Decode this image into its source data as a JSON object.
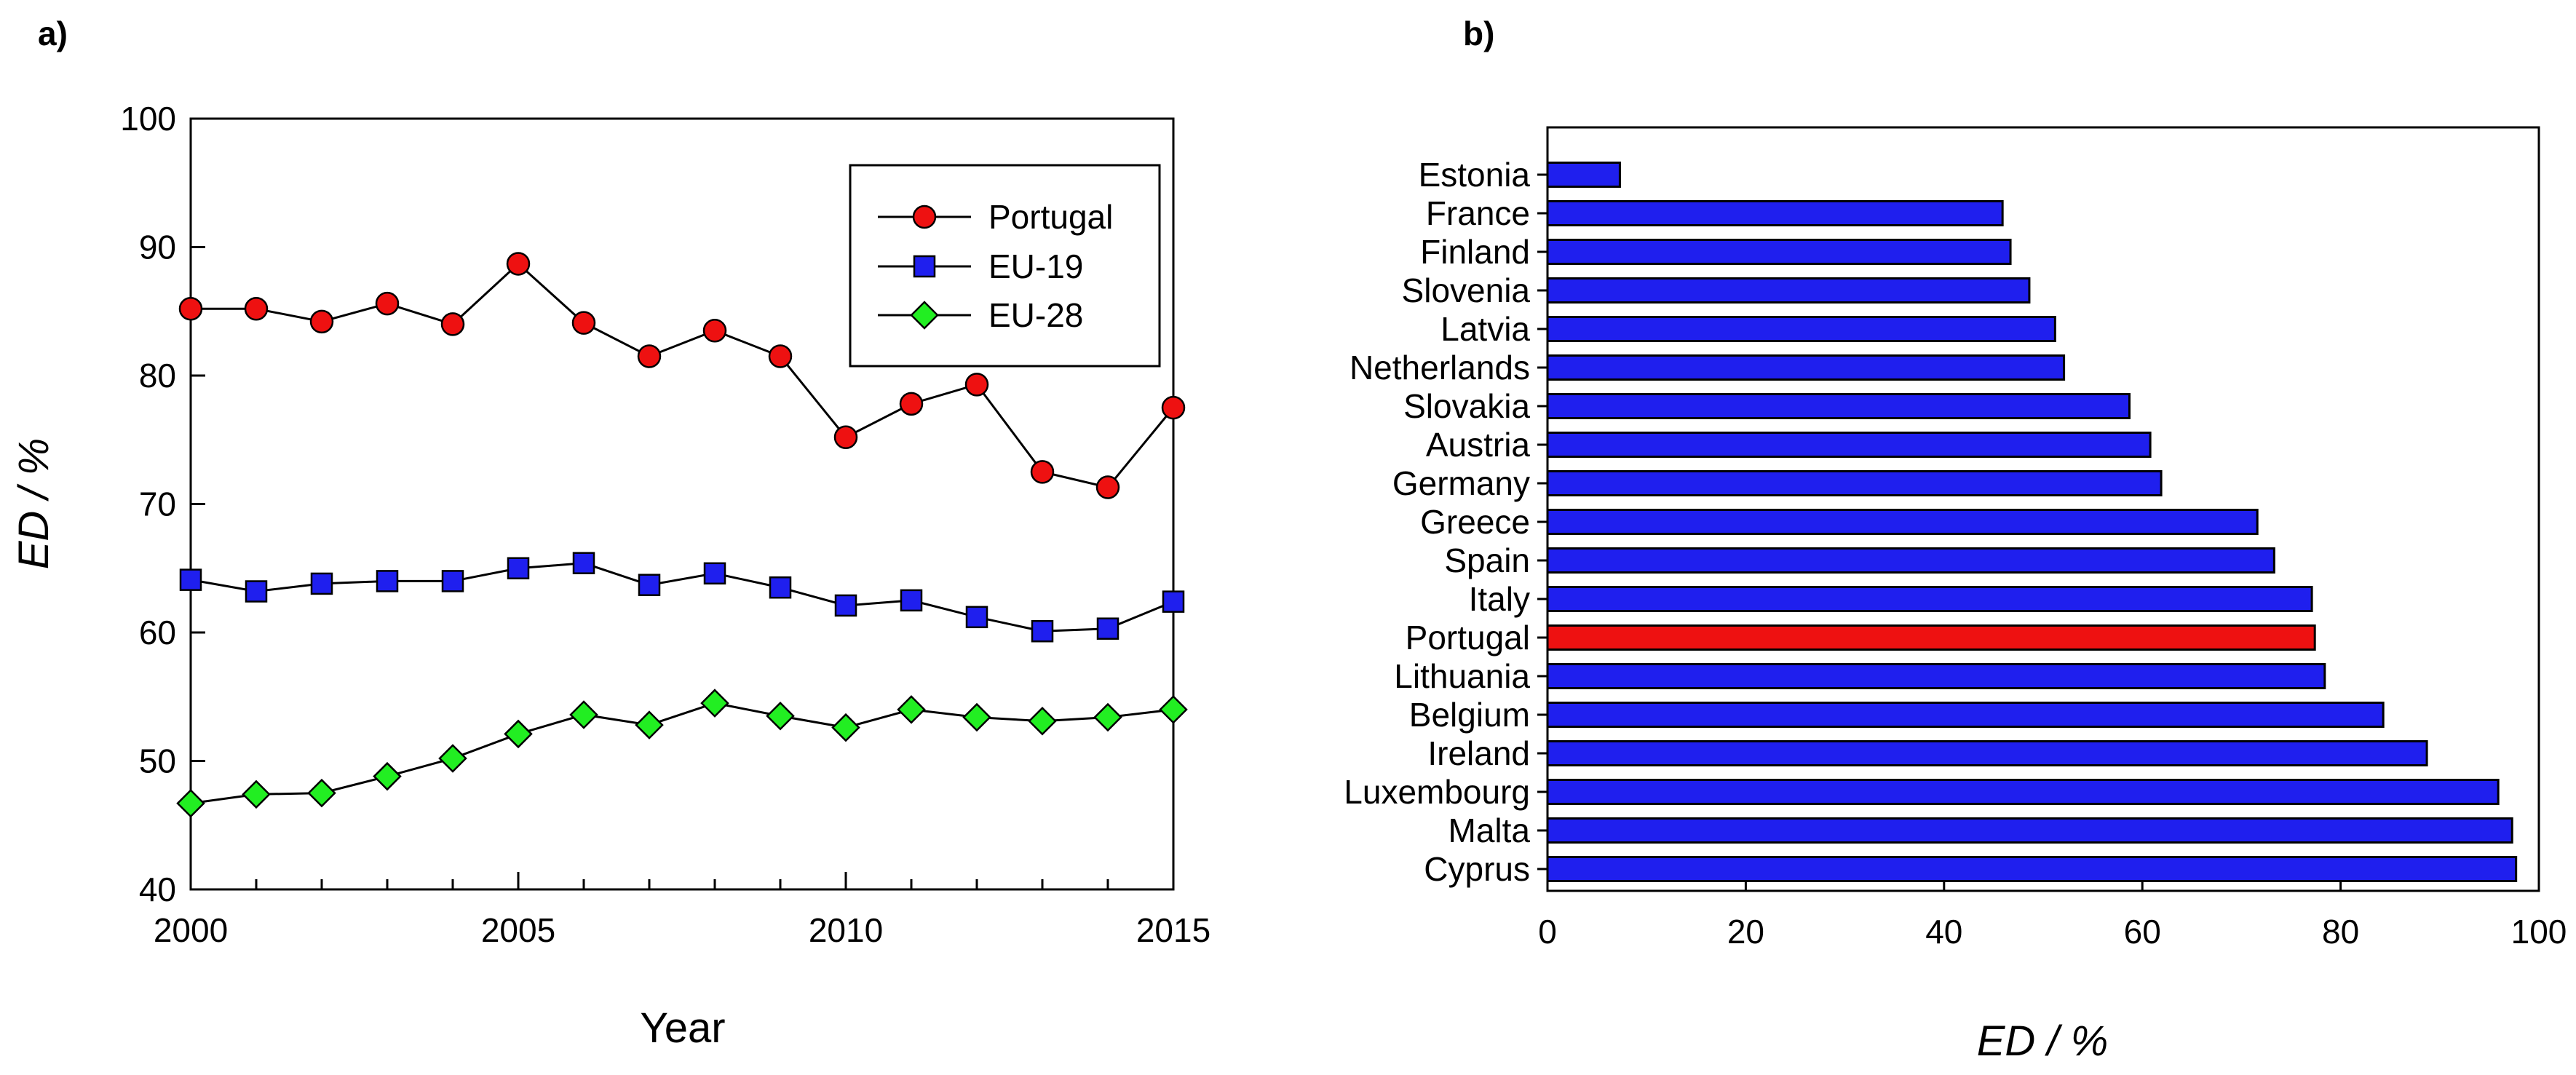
{
  "chart_data": [
    {
      "type": "line",
      "panel_label": "a)",
      "xlabel": "Year",
      "ylabel": "ED / %",
      "xlim": [
        2000,
        2015
      ],
      "ylim": [
        40,
        100
      ],
      "xticks": [
        2000,
        2005,
        2010,
        2015
      ],
      "yticks": [
        40,
        50,
        60,
        70,
        80,
        90,
        100
      ],
      "grid": false,
      "legend_position": "top-right",
      "x": [
        2000,
        2001,
        2002,
        2003,
        2004,
        2005,
        2006,
        2007,
        2008,
        2009,
        2010,
        2011,
        2012,
        2013,
        2014,
        2015
      ],
      "series": [
        {
          "name": "Portugal",
          "marker": "circle",
          "color": "#ee1111",
          "values": [
            85.2,
            85.2,
            84.2,
            85.6,
            84.0,
            88.7,
            84.1,
            81.5,
            83.5,
            81.5,
            75.2,
            77.8,
            79.3,
            72.5,
            71.3,
            77.5
          ]
        },
        {
          "name": "EU-19",
          "marker": "square",
          "color": "#1f1fee",
          "values": [
            64.1,
            63.2,
            63.8,
            64.0,
            64.0,
            65.0,
            65.4,
            63.7,
            64.6,
            63.5,
            62.1,
            62.5,
            61.2,
            60.1,
            60.3,
            62.4
          ]
        },
        {
          "name": "EU-28",
          "marker": "diamond",
          "color": "#22ee22",
          "values": [
            46.7,
            47.4,
            47.5,
            48.8,
            50.2,
            52.1,
            53.6,
            52.8,
            54.5,
            53.5,
            52.6,
            54.0,
            53.4,
            53.1,
            53.4,
            54.0
          ]
        }
      ]
    },
    {
      "type": "bar",
      "orientation": "horizontal",
      "panel_label": "b)",
      "xlabel": "ED / %",
      "ylabel": "",
      "xlim": [
        0,
        100
      ],
      "xticks": [
        0,
        20,
        40,
        60,
        80,
        100
      ],
      "grid": false,
      "bar_color": "#1f1fee",
      "highlight_color": "#ee1111",
      "highlight_category": "Portugal",
      "categories": [
        "Estonia",
        "France",
        "Finland",
        "Slovenia",
        "Latvia",
        "Netherlands",
        "Slovakia",
        "Austria",
        "Germany",
        "Greece",
        "Spain",
        "Italy",
        "Portugal",
        "Lithuania",
        "Belgium",
        "Ireland",
        "Luxembourg",
        "Malta",
        "Cyprus"
      ],
      "values": [
        7.3,
        45.9,
        46.7,
        48.6,
        51.2,
        52.1,
        58.7,
        60.8,
        61.9,
        71.6,
        73.3,
        77.1,
        77.4,
        78.4,
        84.3,
        88.7,
        95.9,
        97.3,
        97.7
      ]
    }
  ]
}
